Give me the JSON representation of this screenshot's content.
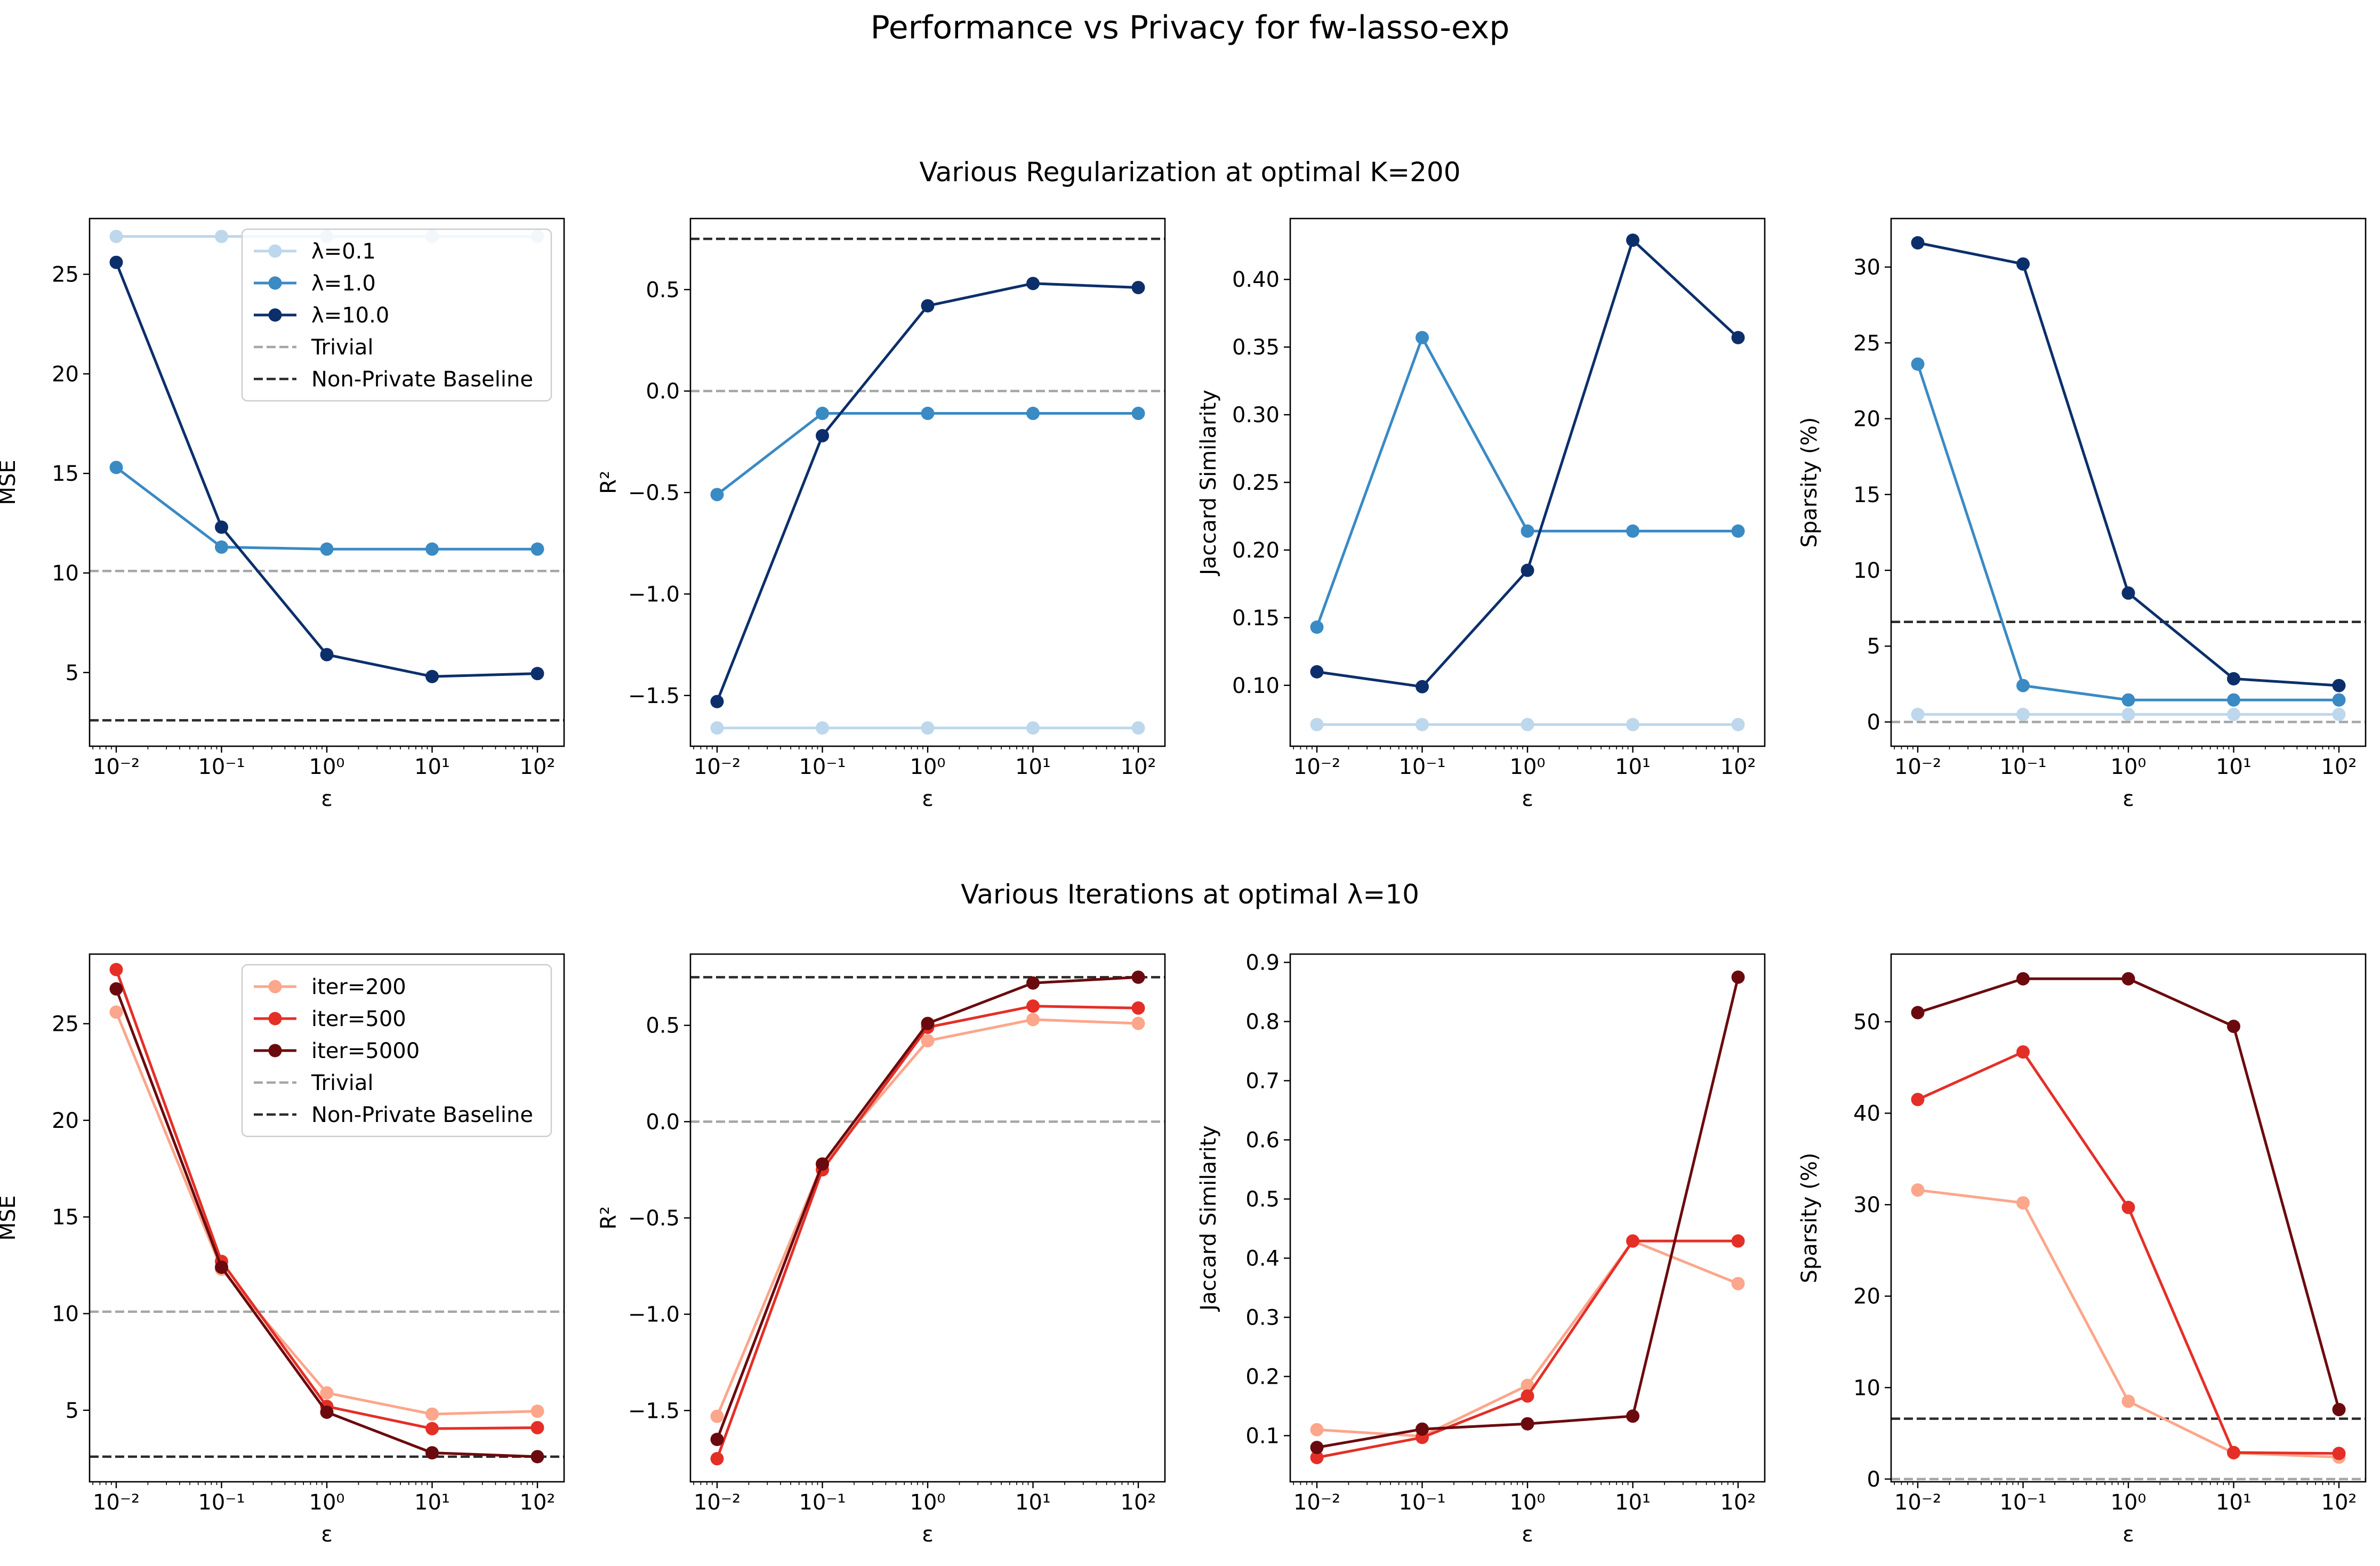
{
  "figure": {
    "title": "Performance vs Privacy for fw-lasso-exp",
    "row_titles": [
      "Various Regularization at optimal K=200",
      "Various Iterations at optimal λ=10"
    ]
  },
  "colors": {
    "blues": [
      "#bdd7ec",
      "#3a8ac4",
      "#0c2f6b"
    ],
    "reds": [
      "#fca68b",
      "#e42f27",
      "#6b0a0e"
    ],
    "trivial": "#a6a6a6",
    "baseline": "#2b2b2b"
  },
  "chart_data": [
    {
      "type": "line",
      "xscale": "log",
      "x": [
        0.01,
        0.1,
        1,
        10,
        100
      ],
      "xlabel": "ε",
      "ylabel": "MSE",
      "ylim": [
        1.3,
        27.8
      ],
      "yticks": [
        5,
        10,
        15,
        20,
        25
      ],
      "legend": "top-right",
      "series": [
        {
          "name": "λ=0.1",
          "values": [
            26.9,
            26.9,
            26.9,
            26.9,
            26.9
          ]
        },
        {
          "name": "λ=1.0",
          "values": [
            15.3,
            11.3,
            11.2,
            11.2,
            11.2
          ]
        },
        {
          "name": "λ=10.0",
          "values": [
            25.6,
            12.3,
            5.9,
            4.8,
            4.95
          ]
        }
      ],
      "hlines": [
        {
          "name": "Trivial",
          "y": 10.1,
          "style": "trivial"
        },
        {
          "name": "Non-Private Baseline",
          "y": 2.6,
          "style": "baseline"
        }
      ]
    },
    {
      "type": "line",
      "xscale": "log",
      "x": [
        0.01,
        0.1,
        1,
        10,
        100
      ],
      "xlabel": "ε",
      "ylabel": "R²",
      "ylim": [
        -1.75,
        0.85
      ],
      "yticks": [
        -1.5,
        -1.0,
        -0.5,
        0.0,
        0.5
      ],
      "series": [
        {
          "name": "λ=0.1",
          "values": [
            -1.66,
            -1.66,
            -1.66,
            -1.66,
            -1.66
          ]
        },
        {
          "name": "λ=1.0",
          "values": [
            -0.51,
            -0.11,
            -0.11,
            -0.11,
            -0.11
          ]
        },
        {
          "name": "λ=10.0",
          "values": [
            -1.53,
            -0.22,
            0.42,
            0.53,
            0.51
          ]
        }
      ],
      "hlines": [
        {
          "name": "Trivial",
          "y": 0.0,
          "style": "trivial"
        },
        {
          "name": "Non-Private Baseline",
          "y": 0.75,
          "style": "baseline"
        }
      ]
    },
    {
      "type": "line",
      "xscale": "log",
      "x": [
        0.01,
        0.1,
        1,
        10,
        100
      ],
      "xlabel": "ε",
      "ylabel": "Jaccard Similarity",
      "ylim": [
        0.055,
        0.445
      ],
      "yticks": [
        0.1,
        0.15,
        0.2,
        0.25,
        0.3,
        0.35,
        0.4
      ],
      "series": [
        {
          "name": "λ=0.1",
          "values": [
            0.071,
            0.071,
            0.071,
            0.071,
            0.071
          ]
        },
        {
          "name": "λ=1.0",
          "values": [
            0.143,
            0.357,
            0.214,
            0.214,
            0.214
          ]
        },
        {
          "name": "λ=10.0",
          "values": [
            0.11,
            0.099,
            0.185,
            0.429,
            0.357
          ]
        }
      ],
      "hlines": []
    },
    {
      "type": "line",
      "xscale": "log",
      "x": [
        0.01,
        0.1,
        1,
        10,
        100
      ],
      "xlabel": "ε",
      "ylabel": "Sparsity (%)",
      "ylim": [
        -1.6,
        33.2
      ],
      "yticks": [
        0,
        5,
        10,
        15,
        20,
        25,
        30
      ],
      "series": [
        {
          "name": "λ=0.1",
          "values": [
            0.5,
            0.5,
            0.5,
            0.5,
            0.5
          ]
        },
        {
          "name": "λ=1.0",
          "values": [
            23.6,
            2.4,
            1.45,
            1.45,
            1.45
          ]
        },
        {
          "name": "λ=10.0",
          "values": [
            31.6,
            30.2,
            8.5,
            2.85,
            2.4
          ]
        }
      ],
      "hlines": [
        {
          "name": "Trivial",
          "y": 0.0,
          "style": "trivial"
        },
        {
          "name": "Non-Private Baseline",
          "y": 6.6,
          "style": "baseline"
        }
      ]
    },
    {
      "type": "line",
      "xscale": "log",
      "x": [
        0.01,
        0.1,
        1,
        10,
        100
      ],
      "xlabel": "ε",
      "ylabel": "MSE",
      "ylim": [
        1.3,
        28.6
      ],
      "yticks": [
        5,
        10,
        15,
        20,
        25
      ],
      "legend": "top-right",
      "series": [
        {
          "name": "iter=200",
          "values": [
            25.6,
            12.3,
            5.9,
            4.8,
            4.95
          ]
        },
        {
          "name": "iter=500",
          "values": [
            27.8,
            12.7,
            5.2,
            4.05,
            4.1
          ]
        },
        {
          "name": "iter=5000",
          "values": [
            26.8,
            12.4,
            4.9,
            2.8,
            2.6
          ]
        }
      ],
      "hlines": [
        {
          "name": "Trivial",
          "y": 10.1,
          "style": "trivial"
        },
        {
          "name": "Non-Private Baseline",
          "y": 2.6,
          "style": "baseline"
        }
      ]
    },
    {
      "type": "line",
      "xscale": "log",
      "x": [
        0.01,
        0.1,
        1,
        10,
        100
      ],
      "xlabel": "ε",
      "ylabel": "R²",
      "ylim": [
        -1.87,
        0.87
      ],
      "yticks": [
        -1.5,
        -1.0,
        -0.5,
        0.0,
        0.5
      ],
      "series": [
        {
          "name": "iter=200",
          "values": [
            -1.53,
            -0.22,
            0.42,
            0.53,
            0.51
          ]
        },
        {
          "name": "iter=500",
          "values": [
            -1.75,
            -0.25,
            0.49,
            0.6,
            0.59
          ]
        },
        {
          "name": "iter=5000",
          "values": [
            -1.65,
            -0.22,
            0.51,
            0.72,
            0.75
          ]
        }
      ],
      "hlines": [
        {
          "name": "Trivial",
          "y": 0.0,
          "style": "trivial"
        },
        {
          "name": "Non-Private Baseline",
          "y": 0.75,
          "style": "baseline"
        }
      ]
    },
    {
      "type": "line",
      "xscale": "log",
      "x": [
        0.01,
        0.1,
        1,
        10,
        100
      ],
      "xlabel": "ε",
      "ylabel": "Jaccard Similarity",
      "ylim": [
        0.022,
        0.914
      ],
      "yticks": [
        0.1,
        0.2,
        0.3,
        0.4,
        0.5,
        0.6,
        0.7,
        0.8,
        0.9
      ],
      "series": [
        {
          "name": "iter=200",
          "values": [
            0.11,
            0.099,
            0.185,
            0.429,
            0.357
          ]
        },
        {
          "name": "iter=500",
          "values": [
            0.063,
            0.097,
            0.167,
            0.429,
            0.429
          ]
        },
        {
          "name": "iter=5000",
          "values": [
            0.08,
            0.111,
            0.12,
            0.133,
            0.875
          ]
        }
      ],
      "hlines": []
    },
    {
      "type": "line",
      "xscale": "log",
      "x": [
        0.01,
        0.1,
        1,
        10,
        100
      ],
      "xlabel": "ε",
      "ylabel": "Sparsity (%)",
      "ylim": [
        -0.3,
        57.4
      ],
      "yticks": [
        0,
        10,
        20,
        30,
        40,
        50
      ],
      "series": [
        {
          "name": "iter=200",
          "values": [
            31.6,
            30.2,
            8.5,
            2.85,
            2.4
          ]
        },
        {
          "name": "iter=500",
          "values": [
            41.5,
            46.7,
            29.7,
            2.9,
            2.8
          ]
        },
        {
          "name": "iter=5000",
          "values": [
            51.0,
            54.7,
            54.7,
            49.5,
            7.6
          ]
        }
      ],
      "hlines": [
        {
          "name": "Trivial",
          "y": 0.0,
          "style": "trivial"
        },
        {
          "name": "Non-Private Baseline",
          "y": 6.6,
          "style": "baseline"
        }
      ]
    }
  ]
}
